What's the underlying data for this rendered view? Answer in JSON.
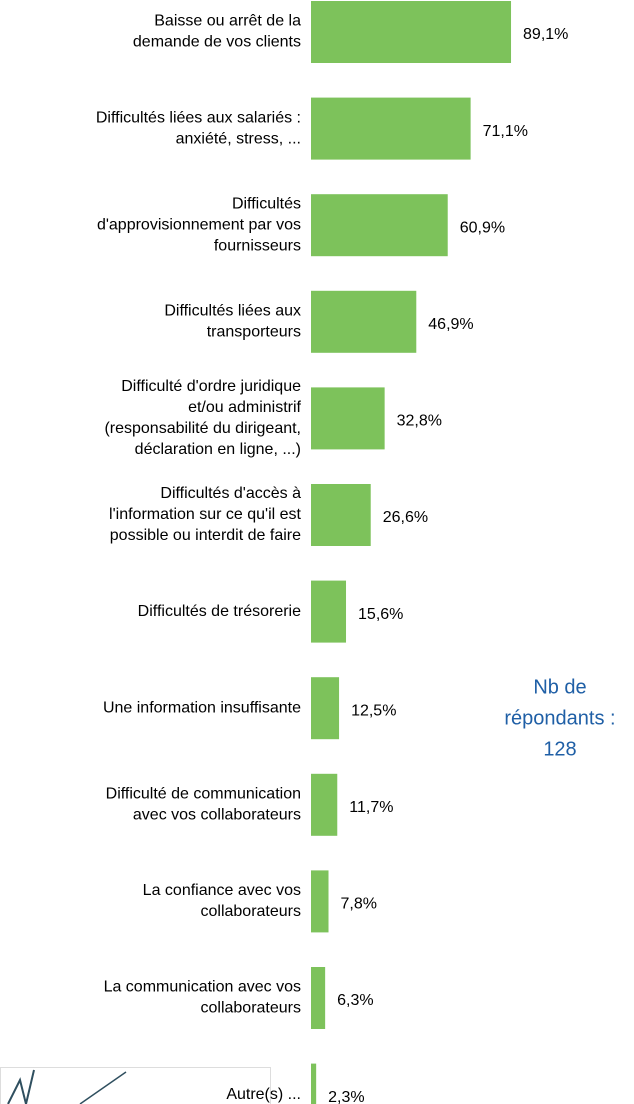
{
  "chart_data": {
    "type": "bar",
    "orientation": "horizontal",
    "color": "#7dc25b",
    "categories": [
      [
        "Baisse ou arrêt de la",
        "demande de vos clients"
      ],
      [
        "Difficultés liées aux salariés :",
        "anxiété, stress, ..."
      ],
      [
        "Difficultés",
        "d'approvisionnement par vos",
        "fournisseurs"
      ],
      [
        "Difficultés liées aux",
        "transporteurs"
      ],
      [
        "Difficulté d'ordre juridique",
        "et/ou administrif",
        "(responsabilité du dirigeant,",
        "déclaration en ligne, ...)"
      ],
      [
        "Difficultés d'accès à",
        "l'information sur ce qu'il est",
        "possible ou interdit de faire"
      ],
      [
        "Difficultés de trésorerie"
      ],
      [
        "Une information insuffisante"
      ],
      [
        "Difficulté de communication",
        "avec vos collaborateurs"
      ],
      [
        "La confiance avec vos",
        "collaborateurs"
      ],
      [
        "La communication avec vos",
        "collaborateurs"
      ],
      [
        "Autre(s) ..."
      ]
    ],
    "values": [
      89.1,
      71.1,
      60.9,
      46.9,
      32.8,
      26.6,
      15.6,
      12.5,
      11.7,
      7.8,
      6.3,
      2.3
    ],
    "value_labels": [
      "89,1%",
      "71,1%",
      "60,9%",
      "46,9%",
      "32,8%",
      "26,6%",
      "15,6%",
      "12,5%",
      "11,7%",
      "7,8%",
      "6,3%",
      "2,3%"
    ],
    "annotation": [
      "Nb de",
      "répondants :",
      "128"
    ]
  }
}
